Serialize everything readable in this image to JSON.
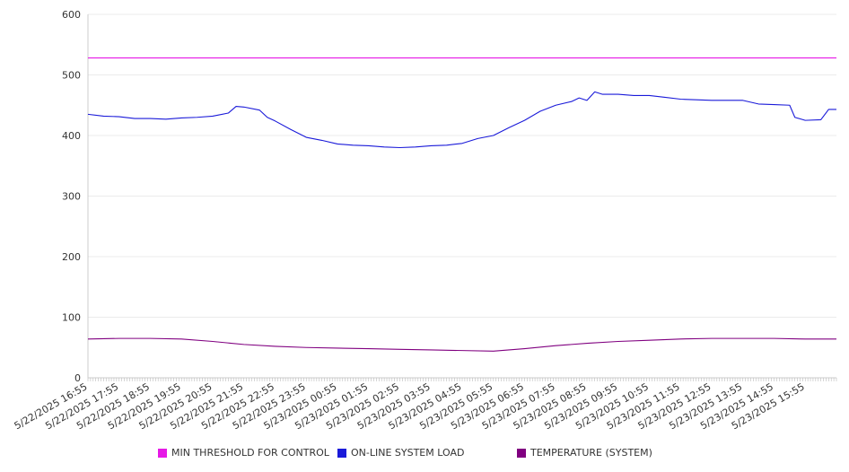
{
  "chart_data": {
    "type": "line",
    "title": "",
    "xlabel": "",
    "ylabel": "",
    "ylim": [
      0,
      600
    ],
    "y_ticks": [
      "0",
      "100",
      "200",
      "300",
      "400",
      "500",
      "600"
    ],
    "x_ticks": [
      "5/22/2025 16:55",
      "5/22/2025 17:55",
      "5/22/2025 18:55",
      "5/22/2025 19:55",
      "5/22/2025 20:55",
      "5/22/2025 21:55",
      "5/22/2025 22:55",
      "5/22/2025 23:55",
      "5/23/2025 00:55",
      "5/23/2025 01:55",
      "5/23/2025 02:55",
      "5/23/2025 03:55",
      "5/23/2025 04:55",
      "5/23/2025 05:55",
      "5/23/2025 06:55",
      "5/23/2025 07:55",
      "5/23/2025 08:55",
      "5/23/2025 09:55",
      "5/23/2025 10:55",
      "5/23/2025 11:55",
      "5/23/2025 12:55",
      "5/23/2025 13:55",
      "5/23/2025 14:55",
      "5/23/2025 15:55"
    ],
    "x_range": [
      "5/22/2025 16:55",
      "5/23/2025 16:55"
    ],
    "grid": "horizontal",
    "legend_position": "bottom",
    "series": [
      {
        "name": "MIN THRESHOLD FOR CONTROL",
        "color": "#e619e6",
        "x": [
          "5/22/2025 16:55",
          "5/23/2025 16:55"
        ],
        "values": [
          528,
          528
        ]
      },
      {
        "name": "ON-LINE SYSTEM LOAD",
        "color": "#1a1ad9",
        "x": [
          "5/22/2025 16:55",
          "5/22/2025 17:25",
          "5/22/2025 17:55",
          "5/22/2025 18:25",
          "5/22/2025 18:55",
          "5/22/2025 19:25",
          "5/22/2025 19:55",
          "5/22/2025 20:25",
          "5/22/2025 20:55",
          "5/22/2025 21:25",
          "5/22/2025 21:40",
          "5/22/2025 21:55",
          "5/22/2025 22:25",
          "5/22/2025 22:40",
          "5/22/2025 22:55",
          "5/22/2025 23:25",
          "5/22/2025 23:55",
          "5/23/2025 00:25",
          "5/23/2025 00:55",
          "5/23/2025 01:25",
          "5/23/2025 01:55",
          "5/23/2025 02:25",
          "5/23/2025 02:55",
          "5/23/2025 03:25",
          "5/23/2025 03:55",
          "5/23/2025 04:25",
          "5/23/2025 04:55",
          "5/23/2025 05:25",
          "5/23/2025 05:55",
          "5/23/2025 06:25",
          "5/23/2025 06:55",
          "5/23/2025 07:25",
          "5/23/2025 07:55",
          "5/23/2025 08:25",
          "5/23/2025 08:40",
          "5/23/2025 08:55",
          "5/23/2025 09:10",
          "5/23/2025 09:25",
          "5/23/2025 09:55",
          "5/23/2025 10:25",
          "5/23/2025 10:55",
          "5/23/2025 11:25",
          "5/23/2025 11:55",
          "5/23/2025 12:25",
          "5/23/2025 12:55",
          "5/23/2025 13:25",
          "5/23/2025 13:55",
          "5/23/2025 14:25",
          "5/23/2025 14:55",
          "5/23/2025 15:25",
          "5/23/2025 15:35",
          "5/23/2025 15:55",
          "5/23/2025 16:25",
          "5/23/2025 16:40",
          "5/23/2025 16:55"
        ],
        "values": [
          435,
          432,
          431,
          428,
          428,
          427,
          429,
          430,
          432,
          437,
          448,
          447,
          442,
          430,
          424,
          410,
          397,
          392,
          386,
          384,
          383,
          381,
          380,
          381,
          383,
          384,
          387,
          395,
          400,
          413,
          425,
          440,
          450,
          456,
          462,
          458,
          472,
          468,
          468,
          466,
          466,
          463,
          460,
          459,
          458,
          458,
          458,
          452,
          451,
          450,
          430,
          425,
          426,
          443,
          443
        ]
      },
      {
        "name": "TEMPERATURE (SYSTEM)",
        "color": "#800080",
        "x": [
          "5/22/2025 16:55",
          "5/22/2025 17:55",
          "5/22/2025 18:55",
          "5/22/2025 19:55",
          "5/22/2025 20:55",
          "5/22/2025 21:55",
          "5/22/2025 22:55",
          "5/22/2025 23:55",
          "5/23/2025 00:55",
          "5/23/2025 01:55",
          "5/23/2025 02:55",
          "5/23/2025 03:55",
          "5/23/2025 04:55",
          "5/23/2025 05:55",
          "5/23/2025 06:55",
          "5/23/2025 07:55",
          "5/23/2025 08:55",
          "5/23/2025 09:55",
          "5/23/2025 10:55",
          "5/23/2025 11:55",
          "5/23/2025 12:55",
          "5/23/2025 13:55",
          "5/23/2025 14:55",
          "5/23/2025 15:55",
          "5/23/2025 16:55"
        ],
        "values": [
          64,
          65,
          65,
          64,
          60,
          55,
          52,
          50,
          49,
          48,
          47,
          46,
          45,
          44,
          48,
          53,
          57,
          60,
          62,
          64,
          65,
          65,
          65,
          64,
          64
        ]
      }
    ]
  }
}
